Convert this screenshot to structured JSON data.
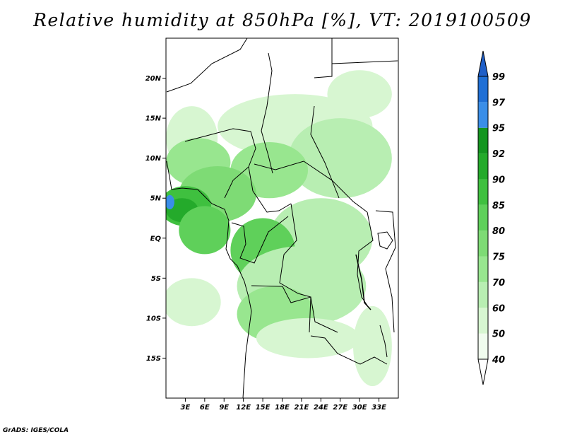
{
  "title": "Relative humidity at 850hPa [%], VT: 2019100509",
  "credit": "GrADS: IGES/COLA",
  "map": {
    "lon_range": [
      0,
      36
    ],
    "lat_range": [
      -20,
      25
    ],
    "lat_ticks": [
      {
        "value": 20,
        "label": "20N"
      },
      {
        "value": 15,
        "label": "15N"
      },
      {
        "value": 10,
        "label": "10N"
      },
      {
        "value": 5,
        "label": "5N"
      },
      {
        "value": 0,
        "label": "EQ"
      },
      {
        "value": -5,
        "label": "5S"
      },
      {
        "value": -10,
        "label": "10S"
      },
      {
        "value": -15,
        "label": "15S"
      }
    ],
    "lon_ticks": [
      {
        "value": 3,
        "label": "3E"
      },
      {
        "value": 6,
        "label": "6E"
      },
      {
        "value": 9,
        "label": "9E"
      },
      {
        "value": 12,
        "label": "12E"
      },
      {
        "value": 15,
        "label": "15E"
      },
      {
        "value": 18,
        "label": "18E"
      },
      {
        "value": 21,
        "label": "21E"
      },
      {
        "value": 24,
        "label": "24E"
      },
      {
        "value": 27,
        "label": "27E"
      },
      {
        "value": 30,
        "label": "30E"
      },
      {
        "value": 33,
        "label": "33E"
      }
    ]
  },
  "colorbar": {
    "levels": [
      {
        "label": "40",
        "color": "#f0fcee"
      },
      {
        "label": "50",
        "color": "#d7f6d1"
      },
      {
        "label": "60",
        "color": "#b8eeb2"
      },
      {
        "label": "70",
        "color": "#98e68f"
      },
      {
        "label": "75",
        "color": "#7edb75"
      },
      {
        "label": "80",
        "color": "#5fd05a"
      },
      {
        "label": "85",
        "color": "#3fc03f"
      },
      {
        "label": "90",
        "color": "#24aa2b"
      },
      {
        "label": "92",
        "color": "#149520"
      },
      {
        "label": "95",
        "color": "#3a8ee8"
      },
      {
        "label": "97",
        "color": "#1f6fd6"
      },
      {
        "label": "99",
        "color": ""
      }
    ],
    "bottom_color": "#ffffff",
    "top_color": "#1f5fc8"
  },
  "humidity_field": [
    {
      "lat": 12.5,
      "lon": 4.0,
      "rx": 4.0,
      "ry": 4.0,
      "color": "#d7f6d1"
    },
    {
      "lat": 14.0,
      "lon": 20.0,
      "rx": 12.0,
      "ry": 4.0,
      "color": "#d7f6d1"
    },
    {
      "lat": 10.0,
      "lon": 27.0,
      "rx": 8.0,
      "ry": 5.0,
      "color": "#b8eeb2"
    },
    {
      "lat": 9.5,
      "lon": 5.0,
      "rx": 5.0,
      "ry": 3.0,
      "color": "#98e68f"
    },
    {
      "lat": 8.5,
      "lon": 16.0,
      "rx": 6.0,
      "ry": 3.5,
      "color": "#98e68f"
    },
    {
      "lat": 5.5,
      "lon": 8.0,
      "rx": 6.0,
      "ry": 3.5,
      "color": "#7edb75"
    },
    {
      "lat": 4.0,
      "lon": 3.0,
      "rx": 4.0,
      "ry": 2.5,
      "color": "#3fc03f"
    },
    {
      "lat": 3.5,
      "lon": 2.5,
      "rx": 2.5,
      "ry": 1.5,
      "color": "#24aa2b"
    },
    {
      "lat": 1.0,
      "lon": 6.0,
      "rx": 4.0,
      "ry": 3.0,
      "color": "#5fd05a"
    },
    {
      "lat": 0.0,
      "lon": 24.0,
      "rx": 8.0,
      "ry": 5.0,
      "color": "#b8eeb2"
    },
    {
      "lat": -1.5,
      "lon": 15.0,
      "rx": 5.0,
      "ry": 4.0,
      "color": "#5fd05a"
    },
    {
      "lat": -6.0,
      "lon": 21.0,
      "rx": 10.0,
      "ry": 5.0,
      "color": "#b8eeb2"
    },
    {
      "lat": -9.5,
      "lon": 17.0,
      "rx": 6.0,
      "ry": 3.5,
      "color": "#98e68f"
    },
    {
      "lat": -8.0,
      "lon": 4.0,
      "rx": 4.5,
      "ry": 3.0,
      "color": "#d7f6d1"
    },
    {
      "lat": -12.5,
      "lon": 22.0,
      "rx": 8.0,
      "ry": 2.5,
      "color": "#d7f6d1"
    },
    {
      "lat": -13.5,
      "lon": 32.0,
      "rx": 3.0,
      "ry": 5.0,
      "color": "#d7f6d1"
    },
    {
      "lat": 18.0,
      "lon": 30.0,
      "rx": 5.0,
      "ry": 3.0,
      "color": "#d7f6d1"
    },
    {
      "lat": 4.5,
      "lon": 0.6,
      "rx": 0.7,
      "ry": 0.9,
      "color": "#3a8ee8"
    }
  ]
}
